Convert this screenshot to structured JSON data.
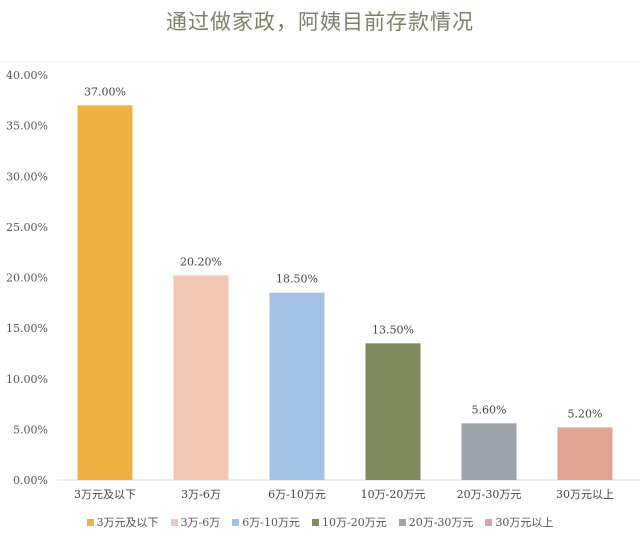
{
  "chart_data": {
    "type": "bar",
    "title": "通过做家政，阿姨目前存款情况",
    "categories": [
      "3万元及以下",
      "3万-6万",
      "6万-10万元",
      "10万-20万元",
      "20万-30万元",
      "30万元以上"
    ],
    "values": [
      37.0,
      20.2,
      18.5,
      13.5,
      5.6,
      5.2
    ],
    "data_labels": [
      "37.00%",
      "20.20%",
      "18.50%",
      "13.50%",
      "5.60%",
      "5.20%"
    ],
    "colors": [
      "#F1B043",
      "#F4C6B5",
      "#A4C2E4",
      "#7F8B5E",
      "#9CA3AD",
      "#E0A592"
    ],
    "ylim": [
      0,
      40
    ],
    "yticks": [
      "0.00%",
      "5.00%",
      "10.00%",
      "15.00%",
      "20.00%",
      "25.00%",
      "30.00%",
      "35.00%",
      "40.00%"
    ],
    "xlabel": "",
    "ylabel": "",
    "grid": false,
    "legend": "bottom"
  }
}
